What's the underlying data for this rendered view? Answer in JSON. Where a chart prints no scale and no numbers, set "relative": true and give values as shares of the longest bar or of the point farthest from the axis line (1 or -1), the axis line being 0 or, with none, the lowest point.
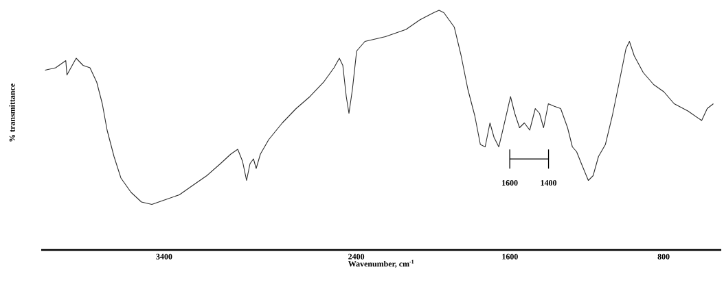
{
  "chart_data": {
    "type": "line",
    "relative": true,
    "xlabel": "Wavenumber, cm$^{-1}$",
    "ylabel": "% transmittance",
    "color": "#2b2b2b",
    "xlim": [
      4040,
      500
    ],
    "xticks": [
      3400,
      2400,
      1600,
      800
    ],
    "x": [
      4020,
      3965,
      3912,
      3906,
      3858,
      3822,
      3786,
      3751,
      3722,
      3697,
      3661,
      3625,
      3572,
      3518,
      3464,
      3393,
      3321,
      3250,
      3178,
      3107,
      3053,
      3017,
      2992,
      2971,
      2953,
      2935,
      2921,
      2899,
      2856,
      2785,
      2713,
      2641,
      2570,
      2516,
      2488,
      2470,
      2452,
      2438,
      2420,
      2398,
      2355,
      2248,
      2141,
      2069,
      1997,
      1969,
      1944,
      1890,
      1854,
      1819,
      1783,
      1754,
      1729,
      1704,
      1683,
      1658,
      1640,
      1611,
      1597,
      1575,
      1550,
      1525,
      1497,
      1468,
      1446,
      1425,
      1400,
      1371,
      1336,
      1300,
      1275,
      1253,
      1228,
      1192,
      1167,
      1139,
      1103,
      1067,
      1031,
      996,
      978,
      953,
      906,
      852,
      799,
      745,
      674,
      602,
      573,
      541
    ],
    "values": [
      0.75,
      0.76,
      0.79,
      0.73,
      0.8,
      0.77,
      0.76,
      0.7,
      0.61,
      0.5,
      0.39,
      0.3,
      0.24,
      0.2,
      0.19,
      0.21,
      0.23,
      0.27,
      0.31,
      0.36,
      0.4,
      0.42,
      0.37,
      0.29,
      0.36,
      0.38,
      0.34,
      0.4,
      0.46,
      0.53,
      0.59,
      0.64,
      0.7,
      0.76,
      0.8,
      0.77,
      0.64,
      0.57,
      0.67,
      0.83,
      0.87,
      0.89,
      0.92,
      0.96,
      0.99,
      1.0,
      0.99,
      0.93,
      0.81,
      0.67,
      0.56,
      0.44,
      0.43,
      0.53,
      0.47,
      0.43,
      0.49,
      0.59,
      0.64,
      0.57,
      0.51,
      0.53,
      0.5,
      0.59,
      0.57,
      0.51,
      0.61,
      0.6,
      0.59,
      0.51,
      0.43,
      0.41,
      0.36,
      0.29,
      0.31,
      0.39,
      0.44,
      0.56,
      0.7,
      0.84,
      0.87,
      0.81,
      0.74,
      0.69,
      0.66,
      0.61,
      0.58,
      0.54,
      0.59,
      0.61
    ],
    "annotations": [
      "1600",
      "1400"
    ]
  }
}
